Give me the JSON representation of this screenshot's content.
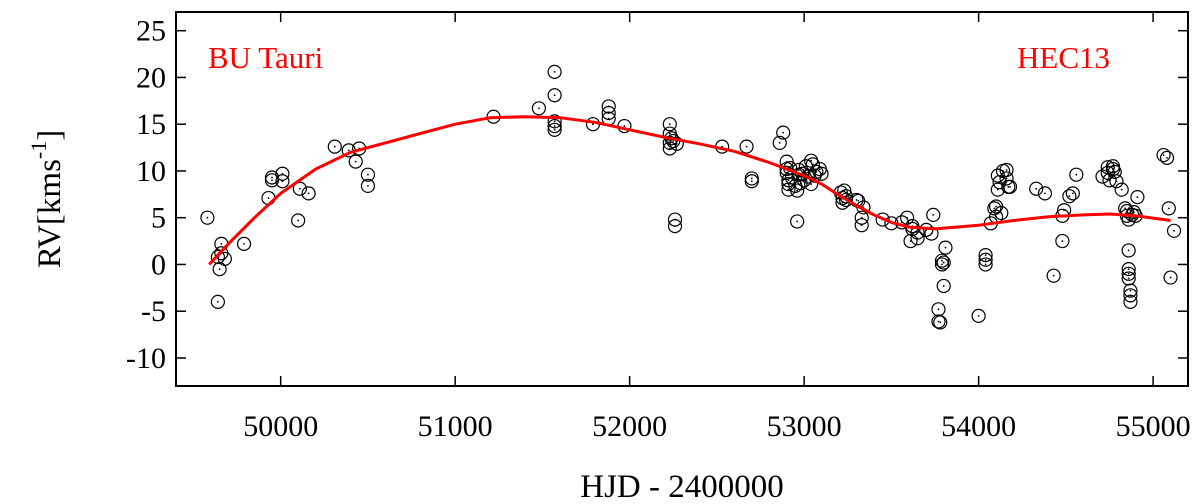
{
  "chart_data": {
    "type": "scatter",
    "title": "",
    "xlabel": "HJD - 2400000",
    "ylabel_main": "RV[kms",
    "ylabel_sup": "-1",
    "ylabel_close": "]",
    "xlim": [
      49400,
      55200
    ],
    "ylim": [
      -13,
      27
    ],
    "xticks": [
      50000,
      51000,
      52000,
      53000,
      54000,
      55000
    ],
    "yticks": [
      -10,
      -5,
      0,
      5,
      10,
      15,
      20,
      25
    ],
    "grid": false,
    "legend": "none",
    "annotations": [
      {
        "text": "BU Tauri",
        "color": "#ff0000",
        "placement": "top-left"
      },
      {
        "text": "HEC13",
        "color": "#ff0000",
        "placement": "top-right"
      }
    ],
    "series": [
      {
        "kind": "points",
        "marker": "open-circle",
        "color": "#000000",
        "points": [
          [
            49580,
            5.0
          ],
          [
            49640,
            0.8
          ],
          [
            49650,
            -0.5
          ],
          [
            49660,
            2.2
          ],
          [
            49640,
            -4.0
          ],
          [
            49660,
            1.2
          ],
          [
            49680,
            0.6
          ],
          [
            49790,
            2.2
          ],
          [
            49930,
            7.1
          ],
          [
            49950,
            9.0
          ],
          [
            49950,
            9.3
          ],
          [
            50010,
            9.7
          ],
          [
            50010,
            8.9
          ],
          [
            50100,
            4.7
          ],
          [
            50110,
            8.1
          ],
          [
            50160,
            7.6
          ],
          [
            50310,
            12.6
          ],
          [
            50390,
            12.2
          ],
          [
            50430,
            11.0
          ],
          [
            50450,
            12.4
          ],
          [
            50500,
            9.6
          ],
          [
            50500,
            8.4
          ],
          [
            51220,
            15.8
          ],
          [
            51480,
            16.7
          ],
          [
            51570,
            20.6
          ],
          [
            51570,
            18.1
          ],
          [
            51570,
            15.3
          ],
          [
            51570,
            14.8
          ],
          [
            51570,
            14.4
          ],
          [
            51790,
            15.0
          ],
          [
            51880,
            16.9
          ],
          [
            51880,
            16.2
          ],
          [
            51880,
            15.6
          ],
          [
            51970,
            14.8
          ],
          [
            52230,
            15.0
          ],
          [
            52230,
            14.0
          ],
          [
            52240,
            13.5
          ],
          [
            52230,
            13.0
          ],
          [
            52230,
            12.4
          ],
          [
            52250,
            13.2
          ],
          [
            52260,
            4.8
          ],
          [
            52260,
            4.1
          ],
          [
            52270,
            12.9
          ],
          [
            52530,
            12.6
          ],
          [
            52670,
            12.6
          ],
          [
            52700,
            9.2
          ],
          [
            52700,
            8.9
          ],
          [
            52860,
            13.0
          ],
          [
            52880,
            14.1
          ],
          [
            52900,
            11.0
          ],
          [
            52900,
            10.2
          ],
          [
            52900,
            9.8
          ],
          [
            52910,
            9.0
          ],
          [
            52910,
            8.6
          ],
          [
            52910,
            8.0
          ],
          [
            52920,
            10.3
          ],
          [
            52930,
            9.3
          ],
          [
            52950,
            8.4
          ],
          [
            52960,
            4.6
          ],
          [
            52960,
            7.9
          ],
          [
            52970,
            10.1
          ],
          [
            52970,
            9.6
          ],
          [
            52980,
            8.7
          ],
          [
            52990,
            9.7
          ],
          [
            53000,
            9.0
          ],
          [
            53010,
            10.5
          ],
          [
            53020,
            9.4
          ],
          [
            53040,
            8.6
          ],
          [
            53040,
            11.1
          ],
          [
            53050,
            10.7
          ],
          [
            53060,
            9.5
          ],
          [
            53070,
            9.9
          ],
          [
            53090,
            10.2
          ],
          [
            53100,
            9.7
          ],
          [
            53210,
            7.7
          ],
          [
            53220,
            7.1
          ],
          [
            53220,
            6.6
          ],
          [
            53230,
            7.9
          ],
          [
            53240,
            7.3
          ],
          [
            53240,
            6.9
          ],
          [
            53300,
            6.9
          ],
          [
            53310,
            6.8
          ],
          [
            53330,
            5.0
          ],
          [
            53330,
            4.2
          ],
          [
            53340,
            6.1
          ],
          [
            53450,
            4.8
          ],
          [
            53500,
            4.4
          ],
          [
            53560,
            4.5
          ],
          [
            53590,
            5.0
          ],
          [
            53610,
            2.5
          ],
          [
            53620,
            3.8
          ],
          [
            53620,
            4.1
          ],
          [
            53650,
            3.4
          ],
          [
            53650,
            2.8
          ],
          [
            53700,
            3.7
          ],
          [
            53730,
            3.3
          ],
          [
            53740,
            5.3
          ],
          [
            53770,
            -4.8
          ],
          [
            53770,
            -6.1
          ],
          [
            53780,
            -6.2
          ],
          [
            53790,
            0.4
          ],
          [
            53790,
            0.0
          ],
          [
            53800,
            0.2
          ],
          [
            53800,
            -2.3
          ],
          [
            53810,
            1.8
          ],
          [
            54000,
            -5.5
          ],
          [
            54040,
            1.0
          ],
          [
            54040,
            0.5
          ],
          [
            54040,
            0.0
          ],
          [
            54070,
            4.4
          ],
          [
            54090,
            6.0
          ],
          [
            54100,
            6.2
          ],
          [
            54100,
            5.1
          ],
          [
            54110,
            9.5
          ],
          [
            54110,
            8.0
          ],
          [
            54120,
            8.8
          ],
          [
            54130,
            5.5
          ],
          [
            54140,
            10.0
          ],
          [
            54160,
            10.1
          ],
          [
            54160,
            9.2
          ],
          [
            54170,
            8.3
          ],
          [
            54180,
            8.3
          ],
          [
            54330,
            8.1
          ],
          [
            54380,
            7.6
          ],
          [
            54430,
            -1.2
          ],
          [
            54480,
            2.5
          ],
          [
            54480,
            5.2
          ],
          [
            54490,
            5.8
          ],
          [
            54520,
            7.3
          ],
          [
            54540,
            7.6
          ],
          [
            54560,
            9.6
          ],
          [
            54710,
            9.4
          ],
          [
            54740,
            10.4
          ],
          [
            54740,
            9.8
          ],
          [
            54750,
            9.0
          ],
          [
            54770,
            10.5
          ],
          [
            54770,
            10.2
          ],
          [
            54780,
            9.9
          ],
          [
            54790,
            8.9
          ],
          [
            54820,
            8.0
          ],
          [
            54840,
            6.0
          ],
          [
            54850,
            5.7
          ],
          [
            54850,
            5.2
          ],
          [
            54860,
            4.8
          ],
          [
            54860,
            1.5
          ],
          [
            54860,
            -0.5
          ],
          [
            54860,
            -1.0
          ],
          [
            54860,
            -1.5
          ],
          [
            54870,
            -2.8
          ],
          [
            54870,
            -3.3
          ],
          [
            54870,
            -4.0
          ],
          [
            54880,
            5.3
          ],
          [
            54890,
            5.6
          ],
          [
            54900,
            5.2
          ],
          [
            54910,
            7.2
          ],
          [
            55060,
            11.7
          ],
          [
            55080,
            11.4
          ],
          [
            55090,
            6.0
          ],
          [
            55100,
            -1.4
          ],
          [
            55120,
            3.6
          ]
        ]
      },
      {
        "kind": "line",
        "color": "#ff0000",
        "points": [
          [
            49590,
            0.0
          ],
          [
            49700,
            2.2
          ],
          [
            49850,
            5.0
          ],
          [
            50000,
            7.6
          ],
          [
            50200,
            10.2
          ],
          [
            50400,
            12.0
          ],
          [
            50600,
            13.0
          ],
          [
            50800,
            14.0
          ],
          [
            51000,
            15.0
          ],
          [
            51200,
            15.7
          ],
          [
            51400,
            15.8
          ],
          [
            51600,
            15.7
          ],
          [
            51800,
            15.2
          ],
          [
            52000,
            14.4
          ],
          [
            52200,
            13.6
          ],
          [
            52400,
            12.9
          ],
          [
            52600,
            12.1
          ],
          [
            52800,
            10.9
          ],
          [
            53000,
            9.5
          ],
          [
            53100,
            8.6
          ],
          [
            53200,
            7.4
          ],
          [
            53300,
            6.3
          ],
          [
            53400,
            5.3
          ],
          [
            53500,
            4.5
          ],
          [
            53600,
            4.0
          ],
          [
            53750,
            3.8
          ],
          [
            54000,
            4.2
          ],
          [
            54200,
            4.7
          ],
          [
            54400,
            5.1
          ],
          [
            54600,
            5.3
          ],
          [
            54750,
            5.4
          ],
          [
            54900,
            5.2
          ],
          [
            55100,
            4.7
          ]
        ]
      }
    ]
  }
}
